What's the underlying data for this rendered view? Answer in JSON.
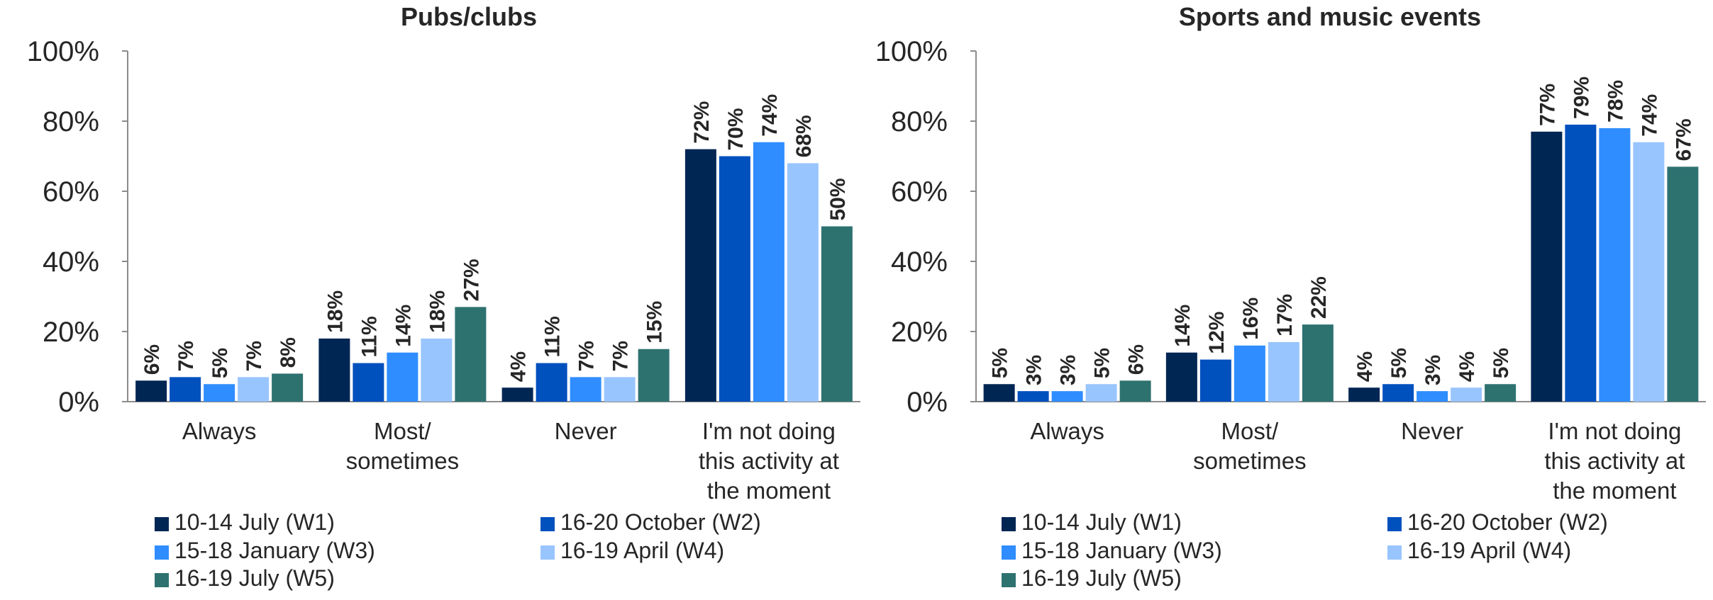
{
  "chart_data": [
    {
      "type": "bar",
      "title": "Pubs/clubs",
      "categories": [
        "Always",
        "Most/ sometimes",
        "Never",
        "I'm not doing this activity at the moment"
      ],
      "category_lines": [
        [
          "Always"
        ],
        [
          "Most/",
          "sometimes"
        ],
        [
          "Never"
        ],
        [
          "I'm not doing",
          "this activity at",
          "the moment"
        ]
      ],
      "yticks": [
        "0%",
        "20%",
        "40%",
        "60%",
        "80%",
        "100%"
      ],
      "ylim": [
        0,
        100
      ],
      "legend_position": "bottom",
      "series": [
        {
          "name": "10-14 July (W1)",
          "color": "#002654",
          "values": [
            6,
            18,
            4,
            72
          ],
          "labels": [
            "6%",
            "18%",
            "4%",
            "72%"
          ]
        },
        {
          "name": "16-20 October (W2)",
          "color": "#0050BE",
          "values": [
            7,
            11,
            11,
            70
          ],
          "labels": [
            "7%",
            "11%",
            "11%",
            "70%"
          ]
        },
        {
          "name": "15-18 January (W3)",
          "color": "#2F8DFF",
          "values": [
            5,
            14,
            7,
            74
          ],
          "labels": [
            "5%",
            "14%",
            "7%",
            "74%"
          ]
        },
        {
          "name": "16-19 April (W4)",
          "color": "#99C5FF",
          "values": [
            7,
            18,
            7,
            68
          ],
          "labels": [
            "7%",
            "18%",
            "7%",
            "68%"
          ]
        },
        {
          "name": "16-19 July (W5)",
          "color": "#2E7270",
          "values": [
            8,
            27,
            15,
            50
          ],
          "labels": [
            "8%",
            "27%",
            "15%",
            "50%"
          ]
        }
      ]
    },
    {
      "type": "bar",
      "title": "Sports and music events",
      "categories": [
        "Always",
        "Most/ sometimes",
        "Never",
        "I'm not doing this activity at the moment"
      ],
      "category_lines": [
        [
          "Always"
        ],
        [
          "Most/",
          "sometimes"
        ],
        [
          "Never"
        ],
        [
          "I'm not doing",
          "this activity at",
          "the moment"
        ]
      ],
      "yticks": [
        "0%",
        "20%",
        "40%",
        "60%",
        "80%",
        "100%"
      ],
      "ylim": [
        0,
        100
      ],
      "legend_position": "bottom",
      "series": [
        {
          "name": "10-14 July (W1)",
          "color": "#002654",
          "values": [
            5,
            14,
            4,
            77
          ],
          "labels": [
            "5%",
            "14%",
            "4%",
            "77%"
          ]
        },
        {
          "name": "16-20 October (W2)",
          "color": "#0050BE",
          "values": [
            3,
            12,
            5,
            79
          ],
          "labels": [
            "3%",
            "12%",
            "5%",
            "79%"
          ]
        },
        {
          "name": "15-18 January (W3)",
          "color": "#2F8DFF",
          "values": [
            3,
            16,
            3,
            78
          ],
          "labels": [
            "3%",
            "16%",
            "3%",
            "78%"
          ]
        },
        {
          "name": "16-19 April (W4)",
          "color": "#99C5FF",
          "values": [
            5,
            17,
            4,
            74
          ],
          "labels": [
            "5%",
            "17%",
            "4%",
            "74%"
          ]
        },
        {
          "name": "16-19 July (W5)",
          "color": "#2E7270",
          "values": [
            6,
            22,
            5,
            67
          ],
          "labels": [
            "6%",
            "22%",
            "5%",
            "67%"
          ]
        }
      ]
    }
  ]
}
